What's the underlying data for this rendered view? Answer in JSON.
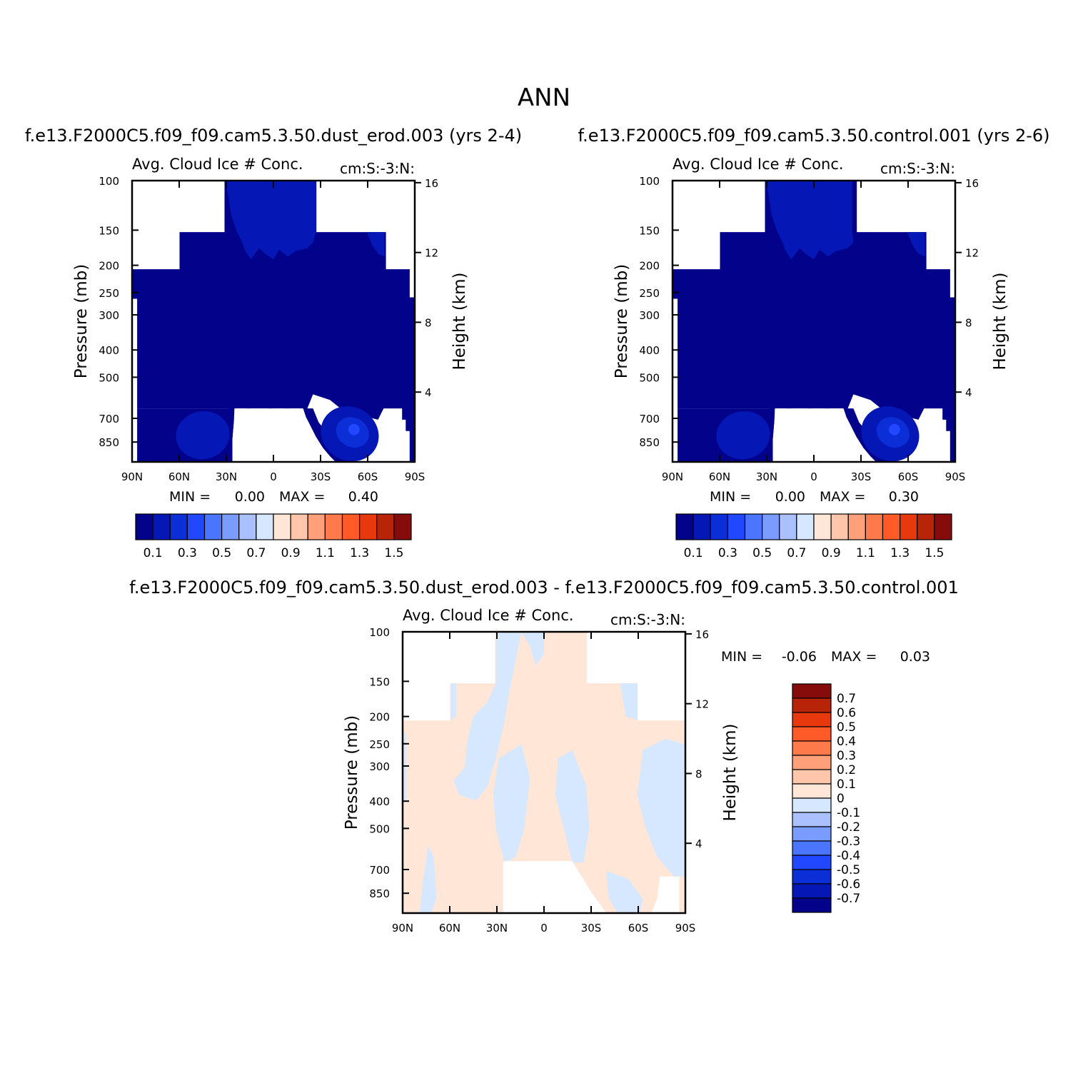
{
  "title": "ANN",
  "panels": {
    "p1": {
      "case_title": "f.e13.F2000C5.f09_f09.cam5.3.50.dust_erod.003 (yrs 2-4)",
      "var_title": "Avg. Cloud Ice # Conc.",
      "units": "cm:S:-3:N:",
      "ylabel": "Pressure (mb)",
      "y2label": "Height (km)",
      "min_label": "MIN =",
      "min_value": "0.00",
      "max_label": "MAX =",
      "max_value": "0.40"
    },
    "p2": {
      "case_title": "f.e13.F2000C5.f09_f09.cam5.3.50.control.001 (yrs 2-6)",
      "var_title": "Avg. Cloud Ice # Conc.",
      "units": "cm:S:-3:N:",
      "ylabel": "Pressure (mb)",
      "y2label": "Height (km)",
      "min_label": "MIN =",
      "min_value": "0.00",
      "max_label": "MAX =",
      "max_value": "0.30"
    },
    "p3": {
      "case_title": "f.e13.F2000C5.f09_f09.cam5.3.50.dust_erod.003 - f.e13.F2000C5.f09_f09.cam5.3.50.control.001",
      "var_title": "Avg. Cloud Ice # Conc.",
      "units": "cm:S:-3:N:",
      "ylabel": "Pressure (mb)",
      "y2label": "Height (km)",
      "min_label": "MIN =",
      "min_value": "-0.06",
      "max_label": "MAX =",
      "max_value": "0.03"
    }
  },
  "chart_data": [
    {
      "type": "heatmap",
      "panel": "p1",
      "x_ticks": [
        "90N",
        "60N",
        "30N",
        "0",
        "30S",
        "60S",
        "90S"
      ],
      "x_range": [
        90,
        -90
      ],
      "y_ticks": [
        100,
        150,
        200,
        250,
        300,
        400,
        500,
        700,
        850
      ],
      "y_scale": "log",
      "y_range": [
        100,
        1000
      ],
      "y2_ticks": [
        16,
        12,
        8,
        4
      ],
      "legend_placement": "bottom",
      "colorbar_labels": [
        "0.1",
        "0.3",
        "0.5",
        "0.7",
        "0.9",
        "1.1",
        "1.3",
        "1.5"
      ],
      "colorbar_colors": [
        "#03028a",
        "#0518b5",
        "#0b2ed6",
        "#2148ff",
        "#4a76ff",
        "#7a9cff",
        "#aac0ff",
        "#d6e8ff",
        "#ffe6d6",
        "#ffc6ac",
        "#ffa07a",
        "#ff7a4a",
        "#ff5a28",
        "#e8380e",
        "#b82408",
        "#860b0b"
      ],
      "min": 0.0,
      "max": 0.4
    },
    {
      "type": "heatmap",
      "panel": "p2",
      "x_ticks": [
        "90N",
        "60N",
        "30N",
        "0",
        "30S",
        "60S",
        "90S"
      ],
      "x_range": [
        90,
        -90
      ],
      "y_ticks": [
        100,
        150,
        200,
        250,
        300,
        400,
        500,
        700,
        850
      ],
      "y_scale": "log",
      "y_range": [
        100,
        1000
      ],
      "y2_ticks": [
        16,
        12,
        8,
        4
      ],
      "legend_placement": "bottom",
      "colorbar_labels": [
        "0.1",
        "0.3",
        "0.5",
        "0.7",
        "0.9",
        "1.1",
        "1.3",
        "1.5"
      ],
      "colorbar_colors": [
        "#03028a",
        "#0518b5",
        "#0b2ed6",
        "#2148ff",
        "#4a76ff",
        "#7a9cff",
        "#aac0ff",
        "#d6e8ff",
        "#ffe6d6",
        "#ffc6ac",
        "#ffa07a",
        "#ff7a4a",
        "#ff5a28",
        "#e8380e",
        "#b82408",
        "#860b0b"
      ],
      "min": 0.0,
      "max": 0.3
    },
    {
      "type": "heatmap",
      "panel": "p3",
      "x_ticks": [
        "90N",
        "60N",
        "30N",
        "0",
        "30S",
        "60S",
        "90S"
      ],
      "x_range": [
        90,
        -90
      ],
      "y_ticks": [
        100,
        150,
        200,
        250,
        300,
        400,
        500,
        700,
        850
      ],
      "y_scale": "log",
      "y_range": [
        100,
        1000
      ],
      "y2_ticks": [
        16,
        12,
        8,
        4
      ],
      "legend_placement": "right",
      "colorbar_labels": [
        "0.7",
        "0.6",
        "0.5",
        "0.4",
        "0.3",
        "0.2",
        "0.1",
        "0",
        "-0.1",
        "-0.2",
        "-0.3",
        "-0.4",
        "-0.5",
        "-0.6",
        "-0.7"
      ],
      "colorbar_colors": [
        "#860b0b",
        "#b82408",
        "#e8380e",
        "#ff5a28",
        "#ff7a4a",
        "#ffa07a",
        "#ffc6ac",
        "#ffe6d6",
        "#d6e8ff",
        "#aac0ff",
        "#7a9cff",
        "#4a76ff",
        "#2148ff",
        "#0b2ed6",
        "#0518b5",
        "#03028a"
      ],
      "min": -0.06,
      "max": 0.03
    }
  ]
}
